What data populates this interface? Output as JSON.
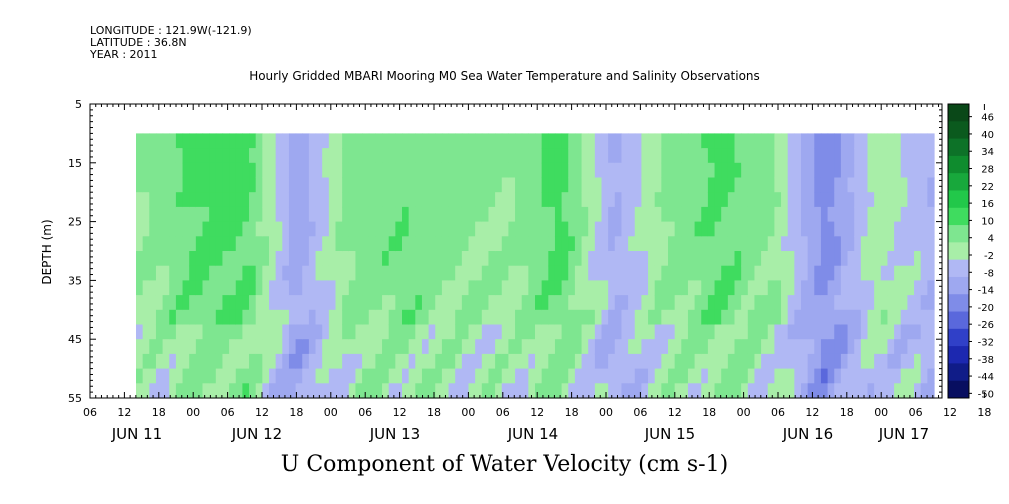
{
  "header": {
    "longitude": "LONGITUDE : 121.9W(-121.9)",
    "latitude": "LATITUDE : 36.8N",
    "year": "YEAR : 2011"
  },
  "title": "Hourly Gridded MBARI Mooring M0 Sea Water Temperature and Salinity Observations",
  "bottom_title": "U Component of Water Velocity (cm s-1)",
  "chart_data": {
    "type": "heatmap",
    "title": "Hourly Gridded MBARI Mooring M0 Sea Water Temperature and Salinity Observations",
    "xlabel": "",
    "ylabel": "DEPTH (m)",
    "variable": "U Component of Water Velocity (cm s-1)",
    "y_axis": {
      "range": [
        5,
        55
      ],
      "inverted": true,
      "ticks": [
        5,
        15,
        25,
        35,
        45,
        55
      ]
    },
    "x_axis": {
      "hour_ticks": [
        "06",
        "12",
        "18",
        "00",
        "06",
        "12",
        "18",
        "00",
        "06",
        "12",
        "18",
        "00",
        "06",
        "12",
        "18",
        "00",
        "06",
        "12",
        "18",
        "00",
        "06",
        "12",
        "18",
        "00",
        "06",
        "12",
        "18",
        "00",
        "06"
      ],
      "day_labels": [
        "JUN 11",
        "JUN 12",
        "JUN 13",
        "JUN 14",
        "JUN 15",
        "JUN 16",
        "JUN 17"
      ]
    },
    "data_depth_range": [
      10,
      55
    ],
    "colorbar": {
      "labels": [
        "46",
        "40",
        "34",
        "28",
        "22",
        "16",
        "10",
        "4",
        "-2",
        "-8",
        "-14",
        "-20",
        "-26",
        "-32",
        "-38",
        "-44",
        "-50"
      ]
    },
    "approx_surface_velocity_by_day": [
      {
        "time": "JUN 11 12",
        "u": 4
      },
      {
        "time": "JUN 12 00",
        "u": 12
      },
      {
        "time": "JUN 12 06",
        "u": 14
      },
      {
        "time": "JUN 12 12",
        "u": -14
      },
      {
        "time": "JUN 12 18",
        "u": 8
      },
      {
        "time": "JUN 13 00",
        "u": 10
      },
      {
        "time": "JUN 13 12",
        "u": 6
      },
      {
        "time": "JUN 14 00",
        "u": 4
      },
      {
        "time": "JUN 14 06",
        "u": 14
      },
      {
        "time": "JUN 14 12",
        "u": -10
      },
      {
        "time": "JUN 15 00",
        "u": 6
      },
      {
        "time": "JUN 15 18",
        "u": 12
      },
      {
        "time": "JUN 16 00",
        "u": 6
      },
      {
        "time": "JUN 16 12",
        "u": -20
      },
      {
        "time": "JUN 17 00",
        "u": 2
      },
      {
        "time": "JUN 17 06",
        "u": -8
      }
    ]
  }
}
